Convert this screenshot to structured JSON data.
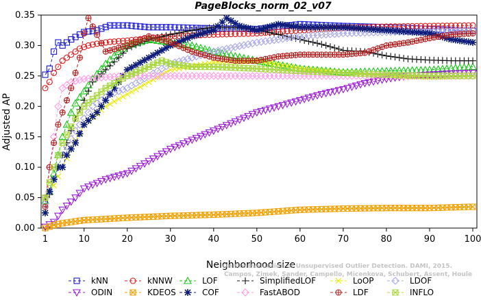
{
  "chart_data": {
    "type": "line",
    "title": "PageBlocks_norm_02_v07",
    "xlabel": "Neighborhood size",
    "ylabel": "Adjusted AP",
    "xlim": [
      0,
      100
    ],
    "ylim": [
      0,
      0.35
    ],
    "xticks": [
      1,
      10,
      20,
      30,
      40,
      50,
      60,
      70,
      80,
      90,
      100
    ],
    "yticks": [
      0.0,
      0.05,
      0.1,
      0.15,
      0.2,
      0.25,
      0.3,
      0.35
    ],
    "ytick_labels": [
      "0.00",
      "0.05",
      "0.10",
      "0.15",
      "0.20",
      "0.25",
      "0.30",
      "0.35"
    ],
    "grid": false,
    "legend_position": "bottom",
    "watermark": "Campos, Zimek, Sander, Campello, Micenkova, Schubert, Assent, Houle",
    "watermark_line1": "On the Evaluation of Unsupervised Outlier Detection. DAMI, 2015.",
    "series": [
      {
        "name": "kNN",
        "color": "#1515d4",
        "marker": "square",
        "x": [
          1,
          2,
          3,
          4,
          5,
          7,
          10,
          13,
          16,
          20,
          25,
          30,
          40,
          50,
          60,
          70,
          80,
          90,
          100
        ],
        "y": [
          0.252,
          0.262,
          0.29,
          0.305,
          0.3,
          0.31,
          0.322,
          0.325,
          0.333,
          0.333,
          0.33,
          0.33,
          0.328,
          0.327,
          0.335,
          0.332,
          0.33,
          0.327,
          0.324
        ]
      },
      {
        "name": "kNNW",
        "color": "#e01818",
        "marker": "circle",
        "x": [
          1,
          2,
          3,
          4,
          5,
          7,
          9,
          11,
          13,
          16,
          20,
          25,
          30,
          40,
          50,
          60,
          70,
          80,
          90,
          100
        ],
        "y": [
          0.23,
          0.24,
          0.255,
          0.265,
          0.275,
          0.285,
          0.295,
          0.3,
          0.303,
          0.306,
          0.308,
          0.312,
          0.315,
          0.318,
          0.32,
          0.325,
          0.329,
          0.331,
          0.332,
          0.333
        ]
      },
      {
        "name": "LOF",
        "color": "#12c812",
        "marker": "triangle-up",
        "x": [
          1,
          2,
          3,
          4,
          5,
          6,
          7,
          8,
          10,
          12,
          15,
          18,
          20,
          25,
          30,
          35,
          40,
          50,
          60,
          70,
          80,
          90,
          100
        ],
        "y": [
          0.045,
          0.06,
          0.09,
          0.12,
          0.15,
          0.17,
          0.19,
          0.205,
          0.225,
          0.245,
          0.27,
          0.29,
          0.3,
          0.31,
          0.305,
          0.3,
          0.29,
          0.275,
          0.262,
          0.256,
          0.258,
          0.26,
          0.265
        ]
      },
      {
        "name": "SimplifiedLOF",
        "color": "#111111",
        "marker": "plus",
        "x": [
          1,
          2,
          3,
          4,
          5,
          6,
          7,
          8,
          10,
          12,
          15,
          18,
          20,
          25,
          30,
          35,
          40,
          45,
          50,
          55,
          60,
          65,
          70,
          75,
          80,
          85,
          90,
          95,
          100
        ],
        "y": [
          0.05,
          0.055,
          0.08,
          0.1,
          0.12,
          0.14,
          0.16,
          0.18,
          0.21,
          0.24,
          0.26,
          0.28,
          0.295,
          0.31,
          0.318,
          0.325,
          0.33,
          0.33,
          0.326,
          0.318,
          0.31,
          0.302,
          0.292,
          0.29,
          0.283,
          0.278,
          0.276,
          0.275,
          0.275
        ]
      },
      {
        "name": "LoOP",
        "color": "#e8e800",
        "marker": "x",
        "x": [
          1,
          3,
          5,
          7,
          10,
          15,
          20,
          25,
          30,
          40,
          50,
          60,
          70,
          80,
          90,
          100
        ],
        "y": [
          0.05,
          0.07,
          0.1,
          0.13,
          0.17,
          0.2,
          0.22,
          0.24,
          0.26,
          0.272,
          0.275,
          0.262,
          0.255,
          0.25,
          0.248,
          0.25
        ]
      },
      {
        "name": "LDOF",
        "color": "#a8a8e8",
        "marker": "diamond",
        "x": [
          1,
          3,
          5,
          8,
          12,
          16,
          20,
          25,
          30,
          40,
          50,
          60,
          70,
          80,
          90,
          100
        ],
        "y": [
          0.04,
          0.08,
          0.12,
          0.16,
          0.2,
          0.22,
          0.23,
          0.25,
          0.27,
          0.29,
          0.305,
          0.315,
          0.32,
          0.322,
          0.323,
          0.325
        ]
      },
      {
        "name": "ODIN",
        "color": "#9a18d8",
        "marker": "triangle-down",
        "x": [
          1,
          3,
          5,
          8,
          10,
          15,
          20,
          25,
          30,
          35,
          40,
          45,
          50,
          55,
          60,
          65,
          70,
          75,
          80,
          85,
          90,
          95,
          100
        ],
        "y": [
          0.002,
          0.01,
          0.03,
          0.05,
          0.065,
          0.08,
          0.09,
          0.11,
          0.13,
          0.145,
          0.16,
          0.175,
          0.19,
          0.2,
          0.21,
          0.22,
          0.228,
          0.238,
          0.245,
          0.25,
          0.252,
          0.254,
          0.255
        ]
      },
      {
        "name": "KDEOS",
        "color": "#f0a000",
        "marker": "square-x",
        "x": [
          1,
          3,
          5,
          8,
          10,
          15,
          20,
          30,
          40,
          50,
          60,
          70,
          80,
          90,
          100
        ],
        "y": [
          0.0,
          0.005,
          0.008,
          0.011,
          0.013,
          0.015,
          0.017,
          0.02,
          0.022,
          0.025,
          0.03,
          0.032,
          0.033,
          0.033,
          0.035
        ]
      },
      {
        "name": "COF",
        "color": "#0c1c78",
        "marker": "asterisk",
        "x": [
          1,
          2,
          3,
          4,
          5,
          6,
          8,
          10,
          13,
          16,
          20,
          25,
          30,
          35,
          40,
          43,
          46,
          50,
          55,
          60,
          70,
          80,
          90,
          95,
          100
        ],
        "y": [
          0.025,
          0.06,
          0.08,
          0.1,
          0.1,
          0.12,
          0.14,
          0.17,
          0.19,
          0.22,
          0.26,
          0.28,
          0.3,
          0.315,
          0.325,
          0.345,
          0.332,
          0.325,
          0.335,
          0.33,
          0.33,
          0.325,
          0.32,
          0.31,
          0.305
        ]
      },
      {
        "name": "FastABOD",
        "color": "#ff9be8",
        "marker": "diamond",
        "x": [
          1,
          2,
          3,
          4,
          5,
          7,
          10,
          15,
          20,
          25,
          30,
          40,
          50,
          60,
          70,
          80,
          90,
          100
        ],
        "y": [
          0.05,
          0.1,
          0.15,
          0.2,
          0.23,
          0.24,
          0.245,
          0.248,
          0.25,
          0.25,
          0.25,
          0.25,
          0.25,
          0.25,
          0.25,
          0.25,
          0.25,
          0.25
        ]
      },
      {
        "name": "LDF",
        "color": "#b82020",
        "marker": "circle-plus",
        "x": [
          1,
          2,
          3,
          4,
          5,
          7,
          9,
          10,
          11,
          15,
          20,
          25,
          30,
          35,
          40,
          45,
          50,
          55,
          60,
          70,
          75,
          80,
          85,
          90,
          95,
          100
        ],
        "y": [
          0.035,
          0.1,
          0.14,
          0.17,
          0.19,
          0.23,
          0.28,
          0.32,
          0.345,
          0.29,
          0.3,
          0.315,
          0.305,
          0.29,
          0.28,
          0.275,
          0.275,
          0.282,
          0.285,
          0.285,
          0.288,
          0.3,
          0.305,
          0.312,
          0.318,
          0.32
        ]
      },
      {
        "name": "INFLO",
        "color": "#a8d840",
        "marker": "square-cross",
        "x": [
          1,
          3,
          5,
          8,
          10,
          15,
          20,
          25,
          28,
          30,
          35,
          40,
          50,
          60,
          70,
          80,
          90,
          100
        ],
        "y": [
          0.05,
          0.1,
          0.14,
          0.18,
          0.2,
          0.23,
          0.25,
          0.265,
          0.275,
          0.27,
          0.265,
          0.265,
          0.262,
          0.258,
          0.255,
          0.252,
          0.25,
          0.25
        ]
      }
    ]
  }
}
